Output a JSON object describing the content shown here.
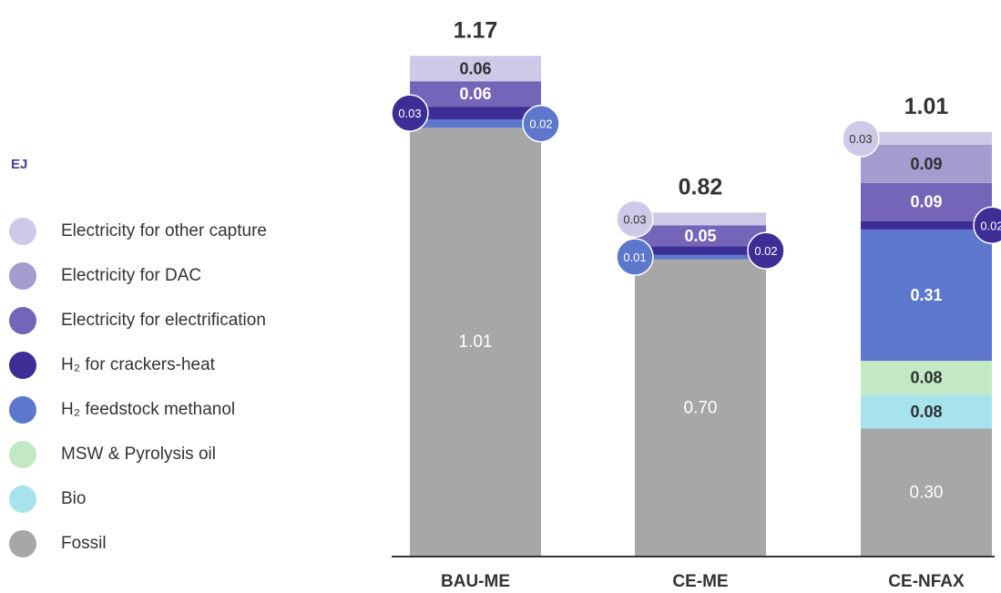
{
  "unit_label": "EJ",
  "colors": {
    "Electricity for other capture": "#cdc9e6",
    "Electricity for DAC": "#a39ccf",
    "Electricity for electrification": "#7565b8",
    "H₂ for crackers-heat": "#3d2e96",
    "H₂ feedstock methanol": "#5c77cc",
    "MSW & Pyrolysis oil": "#c3e8c4",
    "Bio": "#a6e3ec",
    "Fossil": "#a7a7a7"
  },
  "legend": [
    {
      "label": "Electricity for other capture",
      "color": "#cdc9e6"
    },
    {
      "label": "Electricity for DAC",
      "color": "#a39ccf"
    },
    {
      "label": "Electricity for electrification",
      "color": "#7565b8"
    },
    {
      "label": "H₂ for crackers-heat",
      "color": "#3d2e96"
    },
    {
      "label": "H₂ feedstock methanol",
      "color": "#5c77cc"
    },
    {
      "label": "MSW & Pyrolysis oil",
      "color": "#c3e8c4"
    },
    {
      "label": "Bio",
      "color": "#a6e3ec"
    },
    {
      "label": "Fossil",
      "color": "#a7a7a7"
    }
  ],
  "chart_data": {
    "type": "bar",
    "stacked": true,
    "categories": [
      "BAU-ME",
      "CE-ME",
      "CE-NFAX"
    ],
    "totals": [
      "1.17",
      "0.82",
      "1.01"
    ],
    "series": [
      {
        "name": "Fossil",
        "values": [
          1.01,
          0.7,
          0.3
        ],
        "labels": [
          "1.01",
          "0.70",
          "0.30"
        ]
      },
      {
        "name": "Bio",
        "values": [
          0,
          0,
          0.08
        ],
        "labels": [
          "",
          "",
          "0.08"
        ]
      },
      {
        "name": "MSW & Pyrolysis oil",
        "values": [
          0,
          0,
          0.08
        ],
        "labels": [
          "",
          "",
          "0.08"
        ]
      },
      {
        "name": "H₂ feedstock methanol",
        "values": [
          0.02,
          0.01,
          0.31
        ],
        "labels": [
          "0.02",
          "0.01",
          "0.31"
        ]
      },
      {
        "name": "H₂ for crackers-heat",
        "values": [
          0.03,
          0.02,
          0.02
        ],
        "labels": [
          "0.03",
          "0.02",
          "0.02"
        ]
      },
      {
        "name": "Electricity for electrification",
        "values": [
          0.06,
          0.05,
          0.09
        ],
        "labels": [
          "0.06",
          "0.05",
          "0.09"
        ]
      },
      {
        "name": "Electricity for DAC",
        "values": [
          0,
          0,
          0.09
        ],
        "labels": [
          "",
          "",
          "0.09"
        ]
      },
      {
        "name": "Electricity for other capture",
        "values": [
          0.06,
          0.03,
          0.03
        ],
        "labels": [
          "0.06",
          "0.03",
          "0.03"
        ]
      }
    ],
    "ylim": [
      0,
      1.2
    ],
    "grid": false,
    "legend_position": "left"
  }
}
